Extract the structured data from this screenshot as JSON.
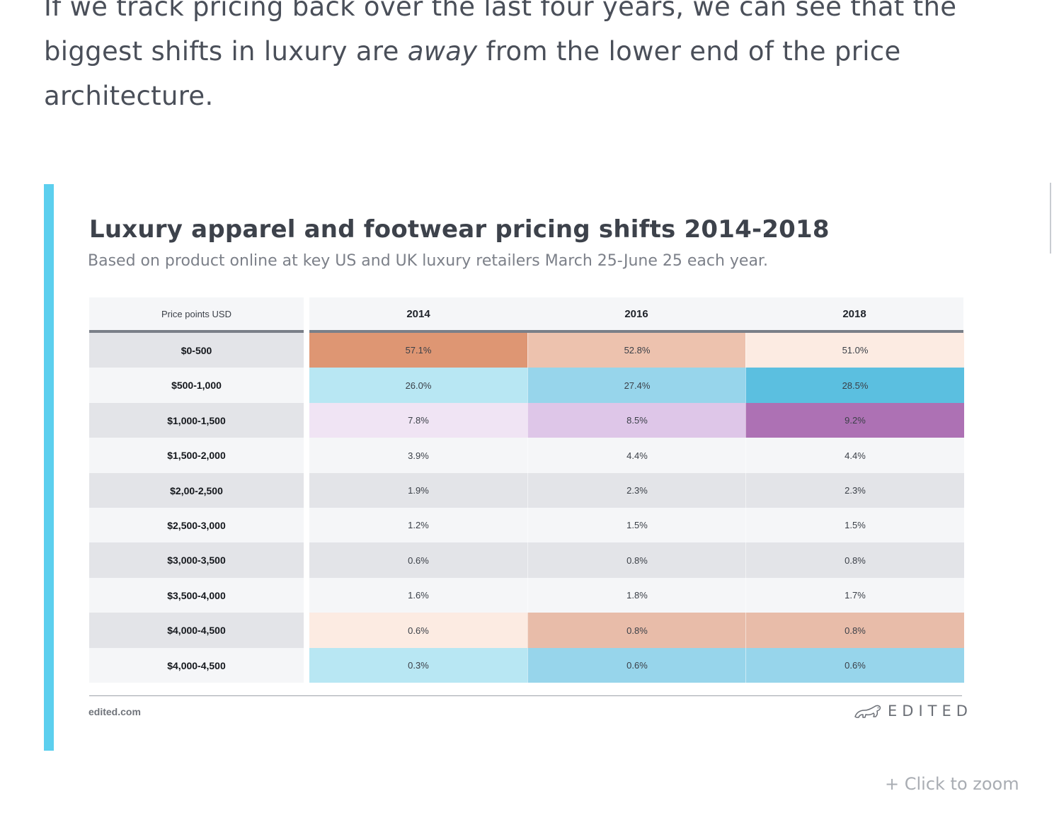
{
  "article": {
    "text_before": "If we track pricing back over the last four years, we can see that the biggest shifts in luxury are ",
    "text_emphasis": "away",
    "text_after": " from the lower end of the price architecture."
  },
  "zoom_label": "+ Click to zoom",
  "brand": {
    "name": "EDITED",
    "icon": "polar-bear-logo-icon"
  },
  "colors": {
    "accent": "#5ccfee"
  },
  "chart_data": {
    "type": "table",
    "title": "Luxury apparel and footwear pricing shifts 2014-2018",
    "subtitle": "Based on product online at key US and UK luxury retailers March 25-June 25 each year.",
    "row_header": "Price points USD",
    "columns": [
      "2014",
      "2016",
      "2018"
    ],
    "rows": [
      {
        "label": "$0-500",
        "values": [
          "57.1%",
          "52.8%",
          "51.0%"
        ],
        "colors": [
          "#de9673",
          "#edc2ae",
          "#fcebe2"
        ]
      },
      {
        "label": "$500-1,000",
        "values": [
          "26.0%",
          "27.4%",
          "28.5%"
        ],
        "colors": [
          "#b8e7f3",
          "#97d5eb",
          "#5bbfe0"
        ]
      },
      {
        "label": "$1,000-1,500",
        "values": [
          "7.8%",
          "8.5%",
          "9.2%"
        ],
        "colors": [
          "#f0e4f4",
          "#dec6e8",
          "#ad71b4"
        ]
      },
      {
        "label": "$1,500-2,000",
        "values": [
          "3.9%",
          "4.4%",
          "4.4%"
        ],
        "colors": [
          null,
          null,
          null
        ]
      },
      {
        "label": "$2,00-2,500",
        "values": [
          "1.9%",
          "2.3%",
          "2.3%"
        ],
        "colors": [
          null,
          null,
          null
        ]
      },
      {
        "label": "$2,500-3,000",
        "values": [
          "1.2%",
          "1.5%",
          "1.5%"
        ],
        "colors": [
          null,
          null,
          null
        ]
      },
      {
        "label": "$3,000-3,500",
        "values": [
          "0.6%",
          "0.8%",
          "0.8%"
        ],
        "colors": [
          null,
          null,
          null
        ]
      },
      {
        "label": "$3,500-4,000",
        "values": [
          "1.6%",
          "1.8%",
          "1.7%"
        ],
        "colors": [
          null,
          null,
          null
        ]
      },
      {
        "label": "$4,000-4,500",
        "values": [
          "0.6%",
          "0.8%",
          "0.8%"
        ],
        "colors": [
          "#fcebe2",
          "#e8bca9",
          "#e8bca9"
        ]
      },
      {
        "label": "$4,000-4,500",
        "values": [
          "0.3%",
          "0.6%",
          "0.6%"
        ],
        "colors": [
          "#b8e7f3",
          "#97d5eb",
          "#97d5eb"
        ]
      }
    ],
    "band_colors": [
      "#e3e4e8",
      "#f5f6f8"
    ],
    "header_background": "#f5f6f8",
    "source": "edited.com"
  }
}
